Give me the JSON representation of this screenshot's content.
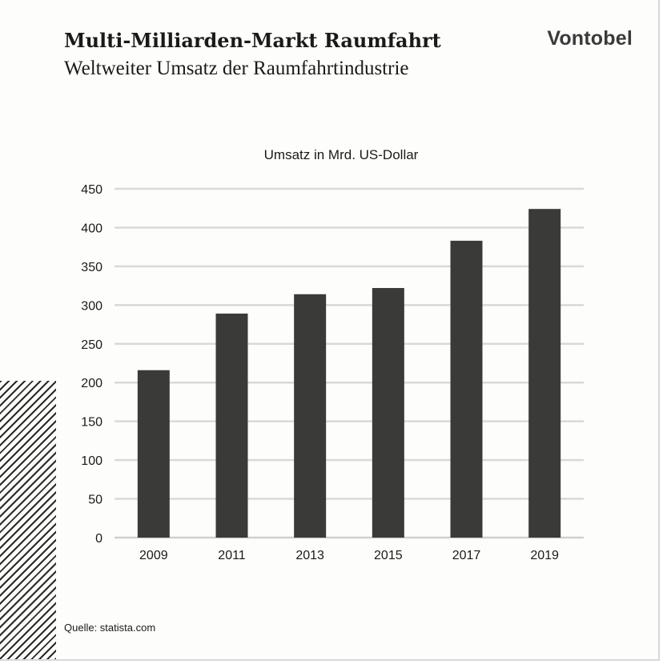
{
  "header": {
    "title": "Multi-Milliarden-Markt Raumfahrt",
    "subtitle": "Weltweiter Umsatz der Raumfahrtindustrie",
    "brand": "Vontobel"
  },
  "footer": {
    "source": "Quelle: statista.com"
  },
  "colors": {
    "bar": "#3a3a38",
    "grid": "#d9d9d9",
    "text": "#1a1a1a"
  },
  "chart_data": {
    "type": "bar",
    "title": "Umsatz in Mrd. US-Dollar",
    "xlabel": "",
    "ylabel": "",
    "categories": [
      "2009",
      "2011",
      "2013",
      "2015",
      "2017",
      "2019"
    ],
    "values": [
      216,
      289,
      314,
      322,
      383,
      424
    ],
    "ylim": [
      0,
      450
    ],
    "yticks": [
      0,
      50,
      100,
      150,
      200,
      250,
      300,
      350,
      400,
      450
    ],
    "grid": true,
    "legend": "none"
  }
}
